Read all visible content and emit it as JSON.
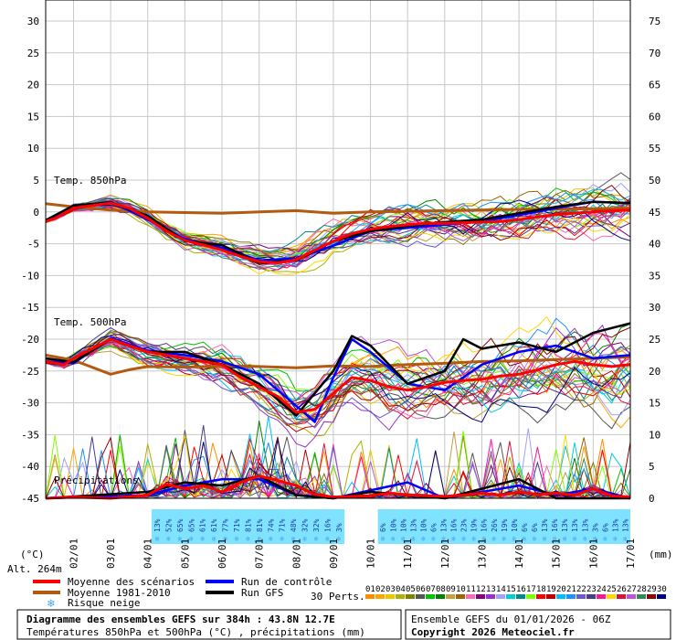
{
  "chart_data": {
    "type": "line",
    "title": "Diagramme des ensembles GEFS sur 384h : 43.8N 12.7E",
    "subtitle": "Températures 850hPa et 500hPa (°C) , précipitations (mm)",
    "run_info": "Ensemble GEFS du 01/01/2026 - 06Z",
    "copyright": "Copyright 2026 Meteociel.fr",
    "altitude": "Alt. 264m",
    "left_axis_unit": "(°C)",
    "right_axis_unit": "(mm)",
    "left_ticks": [
      30,
      25,
      20,
      15,
      10,
      5,
      0,
      -5,
      -10,
      -15,
      -20,
      -25,
      -30,
      -35,
      -40,
      -45
    ],
    "right_ticks": [
      75,
      70,
      65,
      60,
      55,
      50,
      45,
      40,
      35,
      30,
      25,
      20,
      15,
      10,
      5,
      0
    ],
    "ylim_left": [
      -45,
      30
    ],
    "ylim_right": [
      0,
      75
    ],
    "x_labels": [
      "02/01",
      "03/01",
      "04/01",
      "05/01",
      "06/01",
      "07/01",
      "08/01",
      "09/01",
      "10/01",
      "11/01",
      "12/01",
      "13/01",
      "14/01",
      "15/01",
      "16/01",
      "17/01"
    ],
    "xlim_days": [
      1.25,
      17
    ],
    "section_labels": {
      "t850": "Temp. 850hPa",
      "t500": "Temp. 500hPa",
      "precip": "Précipitations"
    },
    "snow_risk_percent": [
      "13%",
      "52%",
      "65%",
      "65%",
      "61%",
      "61%",
      "77%",
      "71%",
      "81%",
      "81%",
      "74%",
      "71%",
      "48%",
      "32%",
      "32%",
      "16%",
      "3%",
      "6%",
      "10%",
      "10%",
      "13%",
      "10%",
      "6%",
      "13%",
      "16%",
      "23%",
      "19%",
      "16%",
      "26%",
      "19%",
      "10%",
      "6%",
      "6%",
      "13%",
      "16%",
      "13%",
      "13%",
      "13%",
      "3%",
      "6%",
      "13%",
      "13%"
    ],
    "snow_risk_colors": {
      "panel_bg": "#7fe3ff",
      "text": "#1a3e9c",
      "flake": "#4aa8ee"
    },
    "series": [
      {
        "name": "Moyenne des scénarios",
        "color": "#ff0000",
        "t850": [
          [
            1.25,
            -1.5
          ],
          [
            1.5,
            -1
          ],
          [
            2,
            0.6
          ],
          [
            2.5,
            1
          ],
          [
            3,
            1.4
          ],
          [
            3.5,
            0.6
          ],
          [
            4,
            -1
          ],
          [
            4.5,
            -3
          ],
          [
            5,
            -4.5
          ],
          [
            5.5,
            -5.2
          ],
          [
            6,
            -6
          ],
          [
            6.5,
            -7
          ],
          [
            7,
            -7.8
          ],
          [
            7.5,
            -8
          ],
          [
            8,
            -7.5
          ],
          [
            8.5,
            -6
          ],
          [
            9,
            -4.6
          ],
          [
            9.5,
            -3.4
          ],
          [
            10,
            -2.7
          ],
          [
            10.5,
            -2.3
          ],
          [
            11,
            -2
          ],
          [
            11.5,
            -1.8
          ],
          [
            12,
            -1.8
          ],
          [
            12.5,
            -1.7
          ],
          [
            13,
            -1.6
          ],
          [
            13.5,
            -1.5
          ],
          [
            14,
            -1.2
          ],
          [
            14.5,
            -0.8
          ],
          [
            15,
            -0.4
          ],
          [
            15.5,
            -0.2
          ],
          [
            16,
            0
          ],
          [
            16.5,
            0.2
          ],
          [
            17,
            0.3
          ]
        ],
        "t500": [
          [
            1.25,
            -23.5
          ],
          [
            1.75,
            -24
          ],
          [
            2,
            -23
          ],
          [
            2.5,
            -21.5
          ],
          [
            3,
            -20
          ],
          [
            3.5,
            -21
          ],
          [
            4,
            -22
          ],
          [
            4.5,
            -22.5
          ],
          [
            5,
            -23
          ],
          [
            5.5,
            -23.5
          ],
          [
            6,
            -24
          ],
          [
            6.5,
            -26
          ],
          [
            7,
            -27.5
          ],
          [
            7.5,
            -29
          ],
          [
            8,
            -31.5
          ],
          [
            8.5,
            -31
          ],
          [
            9,
            -28.5
          ],
          [
            9.5,
            -26
          ],
          [
            10,
            -26.5
          ],
          [
            10.5,
            -27.5
          ],
          [
            11,
            -28
          ],
          [
            11.5,
            -27.5
          ],
          [
            12,
            -26.8
          ],
          [
            12.5,
            -26.5
          ],
          [
            13,
            -26.3
          ],
          [
            13.5,
            -25.8
          ],
          [
            14,
            -25.5
          ],
          [
            14.5,
            -24.8
          ],
          [
            15,
            -24
          ],
          [
            15.5,
            -23.5
          ],
          [
            16,
            -24
          ],
          [
            16.5,
            -24.3
          ],
          [
            17,
            -24
          ]
        ],
        "precip": [
          [
            1.25,
            0
          ],
          [
            2,
            0.2
          ],
          [
            3,
            0
          ],
          [
            4,
            0.5
          ],
          [
            4.5,
            2.2
          ],
          [
            5,
            1.5
          ],
          [
            5.5,
            2
          ],
          [
            6,
            1
          ],
          [
            6.5,
            2.5
          ],
          [
            7,
            3.5
          ],
          [
            7.5,
            2.8
          ],
          [
            8,
            2
          ],
          [
            8.5,
            0.6
          ],
          [
            9,
            0.2
          ],
          [
            10,
            0.4
          ],
          [
            10.5,
            0.8
          ],
          [
            11,
            0.5
          ],
          [
            11.5,
            0.4
          ],
          [
            12,
            0.3
          ],
          [
            12.5,
            0.5
          ],
          [
            13,
            0.8
          ],
          [
            13.5,
            0.5
          ],
          [
            14,
            1
          ],
          [
            14.5,
            0.6
          ],
          [
            15,
            0.8
          ],
          [
            15.5,
            0.5
          ],
          [
            16,
            1.5
          ],
          [
            16.5,
            0.4
          ],
          [
            17,
            0.2
          ]
        ]
      },
      {
        "name": "Moyenne 1981-2010",
        "color": "#b35a11",
        "t850": [
          [
            1.25,
            1.3
          ],
          [
            2,
            0.8
          ],
          [
            3,
            0.3
          ],
          [
            4,
            0
          ],
          [
            5,
            -0.1
          ],
          [
            6,
            -0.2
          ],
          [
            7,
            0
          ],
          [
            8,
            0.2
          ],
          [
            9,
            -0.2
          ],
          [
            10,
            0
          ],
          [
            11,
            0.1
          ],
          [
            12,
            0.2
          ],
          [
            13,
            0.3
          ],
          [
            14,
            0.4
          ],
          [
            15,
            0.4
          ],
          [
            16,
            0.5
          ],
          [
            17,
            0.6
          ]
        ],
        "t500": [
          [
            1.25,
            -22.5
          ],
          [
            2,
            -23.3
          ],
          [
            3,
            -25.5
          ],
          [
            3.5,
            -24.8
          ],
          [
            4,
            -24.3
          ],
          [
            5,
            -24.4
          ],
          [
            6,
            -24.2
          ],
          [
            7,
            -24.3
          ],
          [
            8,
            -24.5
          ],
          [
            9,
            -24.2
          ],
          [
            10,
            -24.3
          ],
          [
            11,
            -24
          ],
          [
            12,
            -23.8
          ],
          [
            13,
            -23.5
          ],
          [
            14,
            -23.4
          ],
          [
            15,
            -23.2
          ],
          [
            16,
            -23
          ],
          [
            17,
            -22.8
          ]
        ],
        "precip": []
      },
      {
        "name": "Run de contrôle",
        "color": "#0000ff",
        "t850": [
          [
            1.25,
            -1.4
          ],
          [
            2,
            0.8
          ],
          [
            3,
            1.6
          ],
          [
            4,
            -1.2
          ],
          [
            5,
            -4.3
          ],
          [
            6,
            -5.6
          ],
          [
            7,
            -7.6
          ],
          [
            8,
            -7.3
          ],
          [
            9,
            -5.3
          ],
          [
            10,
            -3
          ],
          [
            11,
            -2.5
          ],
          [
            12,
            -2
          ],
          [
            13,
            -1.5
          ],
          [
            14,
            -0.5
          ],
          [
            15,
            0.6
          ],
          [
            16,
            1.6
          ],
          [
            17,
            1.4
          ]
        ],
        "t500": [
          [
            1.25,
            -23.5
          ],
          [
            2,
            -23.8
          ],
          [
            3,
            -19.8
          ],
          [
            4,
            -21.8
          ],
          [
            5,
            -22.5
          ],
          [
            6,
            -23.5
          ],
          [
            7,
            -25.5
          ],
          [
            8,
            -30.5
          ],
          [
            8.5,
            -33
          ],
          [
            9,
            -26
          ],
          [
            9.5,
            -20
          ],
          [
            10,
            -22
          ],
          [
            11,
            -27
          ],
          [
            12,
            -28
          ],
          [
            13,
            -24
          ],
          [
            14,
            -22
          ],
          [
            15,
            -21
          ],
          [
            16,
            -23
          ],
          [
            17,
            -22.5
          ]
        ],
        "precip": [
          [
            1.25,
            0
          ],
          [
            4,
            0.5
          ],
          [
            5,
            2
          ],
          [
            6,
            3
          ],
          [
            7,
            3
          ],
          [
            8,
            0.5
          ],
          [
            9,
            0
          ],
          [
            11,
            2.5
          ],
          [
            12,
            0
          ],
          [
            14,
            2
          ],
          [
            15,
            0.5
          ],
          [
            16,
            1.5
          ],
          [
            17,
            0
          ]
        ]
      },
      {
        "name": "Run GFS",
        "color": "#000000",
        "t850": [
          [
            1.25,
            -1.3
          ],
          [
            2,
            1
          ],
          [
            3,
            1.5
          ],
          [
            4,
            -0.6
          ],
          [
            5,
            -4.6
          ],
          [
            6,
            -5.2
          ],
          [
            7,
            -8
          ],
          [
            8,
            -7.6
          ],
          [
            9,
            -4.6
          ],
          [
            10,
            -3
          ],
          [
            11,
            -2.2
          ],
          [
            12,
            -1.6
          ],
          [
            13,
            -1.2
          ],
          [
            14,
            -0.2
          ],
          [
            15,
            0.8
          ],
          [
            16,
            1.6
          ],
          [
            17,
            1.4
          ]
        ],
        "t500": [
          [
            1.25,
            -23
          ],
          [
            2,
            -23.6
          ],
          [
            3,
            -20
          ],
          [
            4,
            -22
          ],
          [
            5,
            -22
          ],
          [
            6,
            -24
          ],
          [
            7,
            -27
          ],
          [
            8,
            -32
          ],
          [
            9,
            -25
          ],
          [
            9.5,
            -19.5
          ],
          [
            10,
            -21
          ],
          [
            11,
            -27
          ],
          [
            12,
            -25
          ],
          [
            12.5,
            -20
          ],
          [
            13,
            -21.5
          ],
          [
            14,
            -20.5
          ],
          [
            15,
            -22
          ],
          [
            16,
            -19
          ],
          [
            17,
            -17.5
          ]
        ],
        "precip": [
          [
            1.25,
            0
          ],
          [
            4,
            1
          ],
          [
            5,
            2.5
          ],
          [
            6,
            2
          ],
          [
            7,
            3.5
          ],
          [
            8,
            0.5
          ],
          [
            9,
            0
          ],
          [
            10,
            1
          ],
          [
            12,
            0
          ],
          [
            14,
            3
          ],
          [
            15,
            0
          ],
          [
            17,
            0
          ]
        ]
      }
    ],
    "legend": {
      "mean": "Moyenne des scénarios",
      "climo": "Moyenne 1981-2010",
      "snow": "Risque neige",
      "control": "Run de contrôle",
      "gfs": "Run GFS",
      "perts_label": "30 Perts.",
      "perts": [
        "01",
        "02",
        "03",
        "04",
        "05",
        "06",
        "07",
        "08",
        "09",
        "10",
        "11",
        "12",
        "13",
        "14",
        "15",
        "16",
        "17",
        "18",
        "19",
        "20",
        "21",
        "22",
        "23",
        "24",
        "25",
        "26",
        "27",
        "28",
        "29",
        "30"
      ],
      "pert_colors": [
        "#ff8c00",
        "#ffa500",
        "#e6c800",
        "#b0b000",
        "#808000",
        "#555555",
        "#00c000",
        "#008000",
        "#c0a040",
        "#996600",
        "#ff69b4",
        "#800080",
        "#9932cc",
        "#a0a0ff",
        "#00ced1",
        "#008b8b",
        "#7fff00",
        "#ff0000",
        "#c00000",
        "#00bfff",
        "#1e90ff",
        "#6a5acd",
        "#483d8b",
        "#ff1493",
        "#ffd700",
        "#dc143c",
        "#ba55d3",
        "#2e8b57",
        "#8b0000",
        "#000080"
      ]
    }
  }
}
